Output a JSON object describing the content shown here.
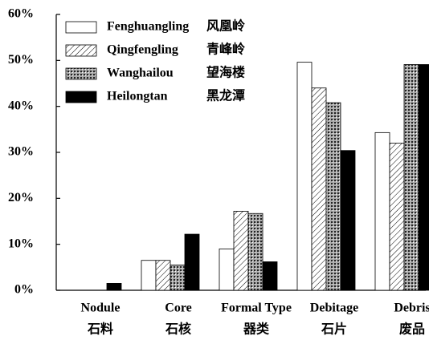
{
  "chart_data": {
    "type": "bar",
    "categories": [
      [
        "Nodule",
        "石料"
      ],
      [
        "Core",
        "石核"
      ],
      [
        "Formal Type",
        "器类"
      ],
      [
        "Debitage",
        "石片"
      ],
      [
        "Debris",
        "废品"
      ]
    ],
    "series": [
      {
        "name": "Fenghuangling",
        "name_zh": "风凰岭",
        "color": "#ffffff",
        "pattern": "none",
        "values": [
          0,
          6.5,
          9,
          49.6,
          34.3
        ]
      },
      {
        "name": "Qingfengling",
        "name_zh": "青峰岭",
        "color": "#ffffff",
        "pattern": "hatch",
        "values": [
          0,
          6.5,
          17.2,
          44,
          32
        ]
      },
      {
        "name": "Wanghailou",
        "name_zh": "望海楼",
        "color": "#777777",
        "pattern": "dots",
        "values": [
          0,
          5.5,
          16.7,
          40.8,
          49.1
        ]
      },
      {
        "name": "Heilongtan",
        "name_zh": "黑龙潭",
        "color": "#000000",
        "pattern": "none",
        "values": [
          1.5,
          12.2,
          6.2,
          30.4,
          49.1
        ]
      }
    ],
    "ylim": [
      0,
      60
    ],
    "yticks": [
      {
        "value": 0,
        "label": "0%"
      },
      {
        "value": 10,
        "label": "10%"
      },
      {
        "value": 20,
        "label": "20%"
      },
      {
        "value": 30,
        "label": "30%"
      },
      {
        "value": 40,
        "label": "40%"
      },
      {
        "value": 50,
        "label": "50%"
      },
      {
        "value": 60,
        "label": "60%"
      }
    ],
    "legend": "upper-left"
  }
}
